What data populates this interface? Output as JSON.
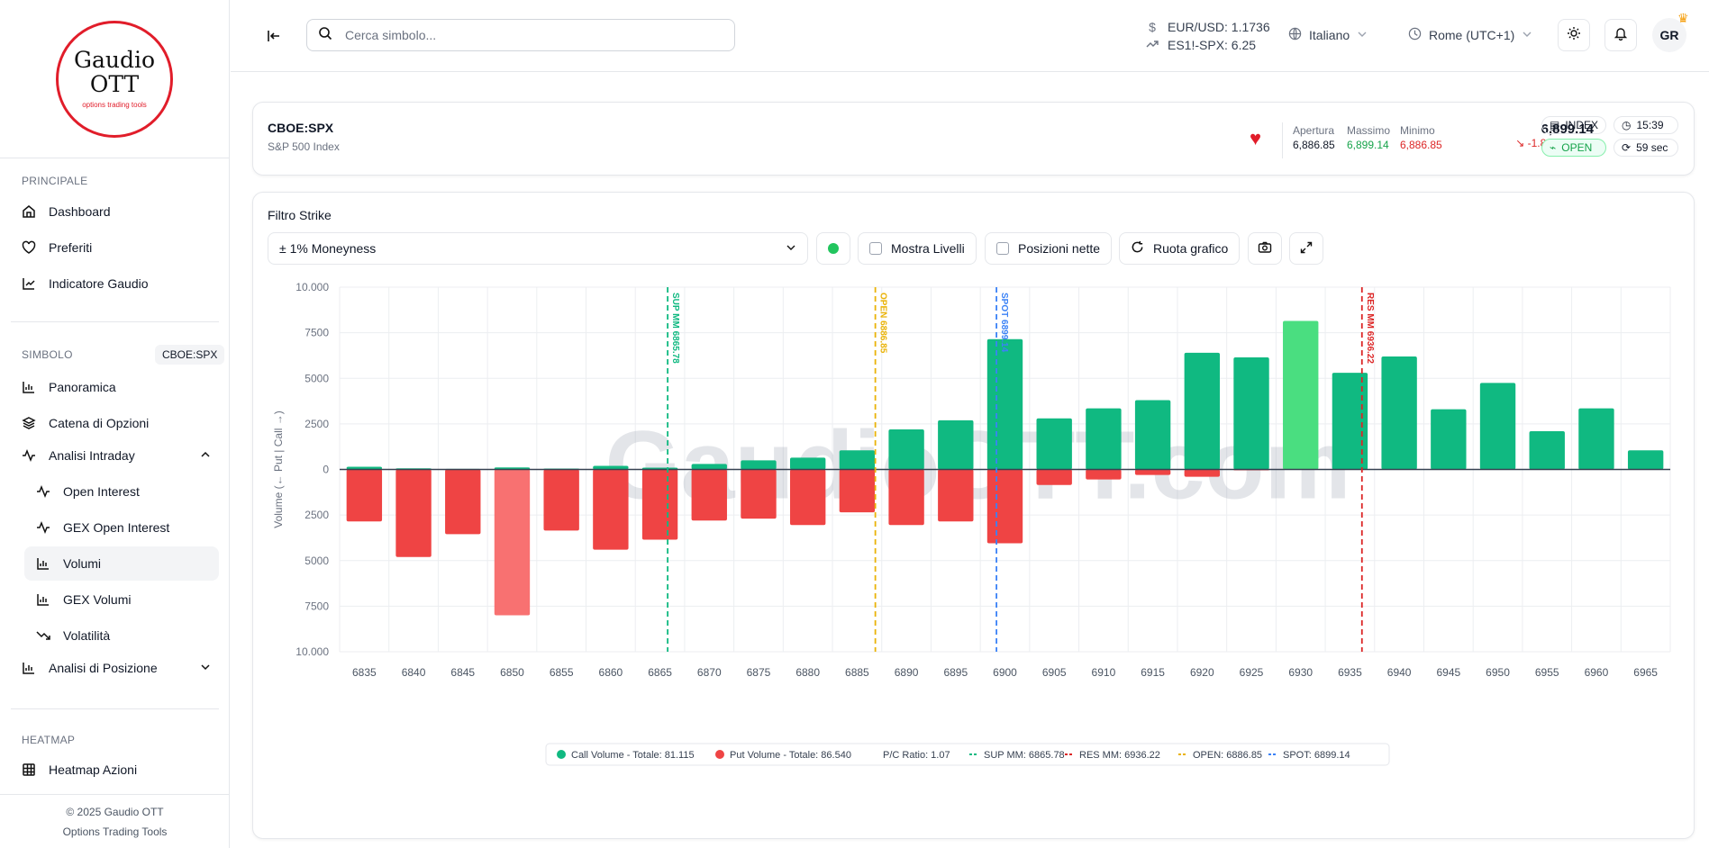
{
  "brand": {
    "line1": "Gaudio",
    "line2": "OTT",
    "tagline": "options trading tools"
  },
  "sidebar": {
    "principale_label": "PRINCIPALE",
    "principale_items": [
      {
        "label": "Dashboard",
        "icon": "home-icon"
      },
      {
        "label": "Preferiti",
        "icon": "heart-icon"
      },
      {
        "label": "Indicatore Gaudio",
        "icon": "chart-icon"
      }
    ],
    "simbolo_label": "SIMBOLO",
    "symbol_badge": "CBOE:SPX",
    "simbolo_items": [
      {
        "label": "Panoramica",
        "icon": "bar-chart-icon"
      },
      {
        "label": "Catena di Opzioni",
        "icon": "layers-icon"
      },
      {
        "label": "Analisi Intraday",
        "icon": "activity-icon",
        "expanded": true
      }
    ],
    "intraday_sub": [
      {
        "label": "Open Interest",
        "icon": "activity-icon"
      },
      {
        "label": "GEX Open Interest",
        "icon": "activity-icon"
      },
      {
        "label": "Volumi",
        "icon": "bar-chart-icon",
        "active": true
      },
      {
        "label": "GEX Volumi",
        "icon": "bar-chart-icon"
      },
      {
        "label": "Volatilità",
        "icon": "trend-down-icon"
      }
    ],
    "posizione": {
      "label": "Analisi di Posizione",
      "icon": "bar-chart-icon"
    },
    "heatmap_label": "HEATMAP",
    "heatmap_item": {
      "label": "Heatmap Azioni",
      "icon": "grid-icon"
    },
    "footer_line1": "© 2025 Gaudio OTT",
    "footer_line2": "Options Trading Tools"
  },
  "topbar": {
    "search_placeholder": "Cerca simbolo...",
    "fx1": "EUR/USD: 1.1736",
    "fx2": "ES1!-SPX: 6.25",
    "language": "Italiano",
    "timezone": "Rome (UTC+1)",
    "avatar": "GR"
  },
  "symbol": {
    "ticker": "CBOE:SPX",
    "name": "S&P 500 Index",
    "apertura_label": "Apertura",
    "apertura": "6,886.85",
    "massimo_label": "Massimo",
    "massimo": "6,899.14",
    "minimo_label": "Minimo",
    "minimo": "6,886.85",
    "price": "6,899.14",
    "change": "-1.86(-0.03%)",
    "type_badge": "INDEX",
    "time": "15:39",
    "status": "OPEN",
    "refresh": "59 sec"
  },
  "filters": {
    "title": "Filtro Strike",
    "moneyness": "± 1% Moneyness",
    "show_levels": "Mostra Livelli",
    "net_positions": "Posizioni nette",
    "rotate": "Ruota grafico"
  },
  "colors": {
    "call": "#10b981",
    "call_hl": "#4ade80",
    "put": "#ef4444",
    "put_hl": "#f87171",
    "sup": "#10b981",
    "res": "#dc2626",
    "open": "#eab308",
    "spot": "#3b82f6"
  },
  "chart_data": {
    "type": "bar",
    "ylabel": "Volume (← Put | Call →)",
    "ylim": [
      -10000,
      10000
    ],
    "yticks": [
      10000,
      7500,
      5000,
      2500,
      0,
      -2500,
      -5000,
      -7500,
      -10000
    ],
    "ytick_labels": [
      "10.000",
      "7500",
      "5000",
      "2500",
      "0",
      "2500",
      "5000",
      "7500",
      "10.000"
    ],
    "categories": [
      "6835",
      "6840",
      "6845",
      "6850",
      "6855",
      "6860",
      "6865",
      "6870",
      "6875",
      "6880",
      "6885",
      "6890",
      "6895",
      "6900",
      "6905",
      "6910",
      "6915",
      "6920",
      "6925",
      "6930",
      "6935",
      "6940",
      "6945",
      "6950",
      "6955",
      "6960",
      "6965"
    ],
    "series": [
      {
        "name": "Call Volume",
        "values": [
          150,
          60,
          30,
          110,
          50,
          200,
          100,
          300,
          500,
          650,
          1050,
          2200,
          2700,
          7150,
          2800,
          3350,
          3800,
          6400,
          6150,
          8150,
          5300,
          6200,
          3300,
          4750,
          2100,
          3350,
          1050
        ]
      },
      {
        "name": "Put Volume",
        "values": [
          -2850,
          -4800,
          -3550,
          -8000,
          -3350,
          -4400,
          -3850,
          -2800,
          -2700,
          -3050,
          -2350,
          -3050,
          -2850,
          -4050,
          -850,
          -550,
          -300,
          -400,
          -50,
          0,
          0,
          0,
          0,
          0,
          0,
          0,
          0
        ]
      }
    ],
    "highlight": "6850",
    "highlight_call": "6930",
    "levels": [
      {
        "label": "SUP MM 6865.78",
        "value": 6865.78,
        "color": "sup"
      },
      {
        "label": "OPEN 6886.85",
        "value": 6886.85,
        "color": "open"
      },
      {
        "label": "SPOT 6899.14",
        "value": 6899.14,
        "color": "spot"
      },
      {
        "label": "RES MM 6936.22",
        "value": 6936.22,
        "color": "res"
      }
    ],
    "legend": [
      {
        "type": "dot",
        "color": "call",
        "label": "Call Volume - Totale: 81.115"
      },
      {
        "type": "dot",
        "color": "put",
        "label": "Put Volume - Totale: 86.540"
      },
      {
        "type": "text",
        "label": "P/C Ratio: 1.07"
      },
      {
        "type": "dash",
        "color": "sup",
        "label": "SUP MM: 6865.78"
      },
      {
        "type": "dash",
        "color": "res",
        "label": "RES MM: 6936.22"
      },
      {
        "type": "dash",
        "color": "open",
        "label": "OPEN: 6886.85"
      },
      {
        "type": "dash",
        "color": "spot",
        "label": "SPOT: 6899.14"
      }
    ],
    "legend_placement": "bottom",
    "grid": true,
    "watermark": "GaudioOTT.com"
  }
}
